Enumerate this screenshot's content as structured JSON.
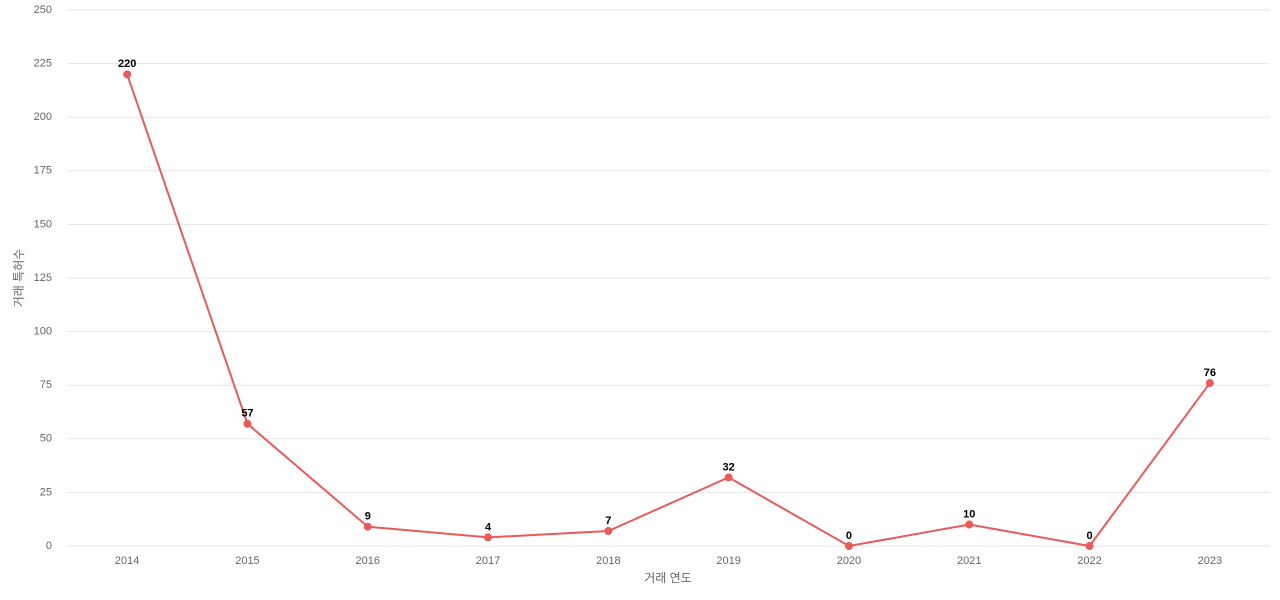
{
  "chart_data": {
    "type": "line",
    "x_label": "거래 연도",
    "y_label": "거래 특허수",
    "categories": [
      "2014",
      "2015",
      "2016",
      "2017",
      "2018",
      "2019",
      "2020",
      "2021",
      "2022",
      "2023"
    ],
    "values": [
      220,
      57,
      9,
      4,
      7,
      32,
      0,
      10,
      0,
      76
    ],
    "color": "#e85b5b",
    "ylim": [
      0,
      250
    ],
    "yticks": [
      0,
      25,
      50,
      75,
      100,
      125,
      150,
      175,
      200,
      225,
      250
    ],
    "grid": true
  }
}
